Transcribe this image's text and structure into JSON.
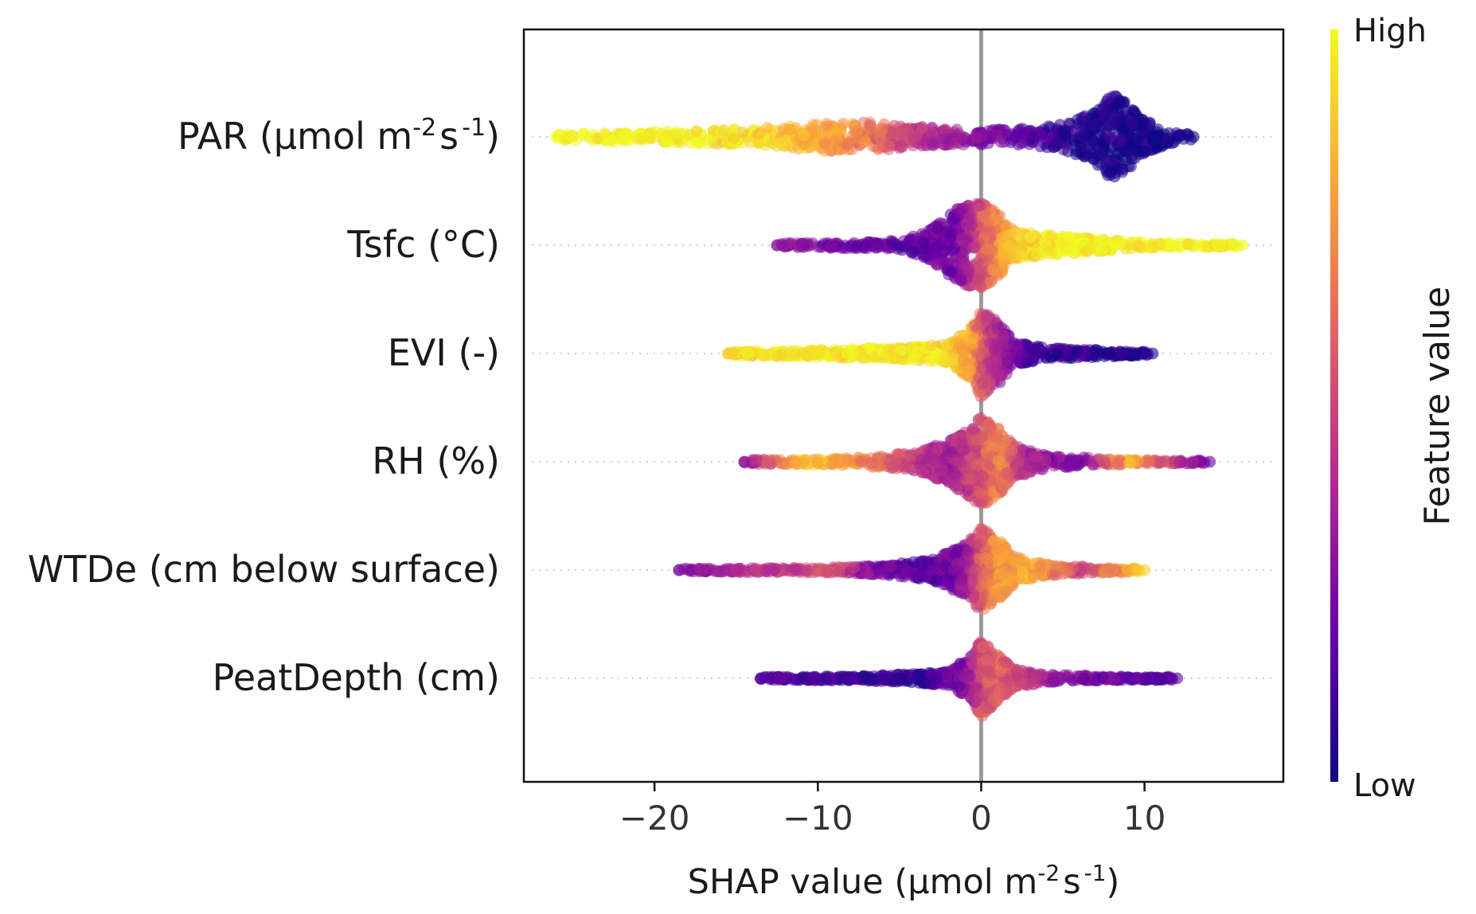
{
  "chart_data": {
    "type": "scatter",
    "subtype": "shap-beeswarm",
    "title": "",
    "xlabel": "SHAP value (µmol m⁻²s⁻¹)",
    "xlabel_parts": {
      "main": "SHAP value (μmol m",
      "sup1": "-2",
      "mid": "s",
      "sup2": "-1",
      "end": ")"
    },
    "xlim": [
      -28,
      18.5
    ],
    "xticks": [
      {
        "value": -20,
        "label": "−20"
      },
      {
        "value": -10,
        "label": "−10"
      },
      {
        "value": 0,
        "label": "0"
      },
      {
        "value": 10,
        "label": "10"
      }
    ],
    "zero_line": true,
    "grid": false,
    "colorbar": {
      "label": "Feature value",
      "high_label": "High",
      "low_label": "Low",
      "colormap": "plasma",
      "stops": [
        "#0d0887",
        "#6a00a8",
        "#b12a90",
        "#e16462",
        "#fca636",
        "#f0f921"
      ]
    },
    "features": [
      {
        "label": "PAR (µmol m⁻²s⁻¹)",
        "label_parts": {
          "main": "PAR (μmol m",
          "sup1": "-2",
          "mid": "s",
          "sup2": "-1",
          "end": ")"
        },
        "min": -26,
        "max": 13,
        "density": [
          [
            -26,
            0.06
          ],
          [
            -22,
            0.1
          ],
          [
            -18,
            0.14
          ],
          [
            -14,
            0.18
          ],
          [
            -10,
            0.3
          ],
          [
            -7,
            0.32
          ],
          [
            -4,
            0.22
          ],
          [
            -1,
            0.18
          ],
          [
            2,
            0.16
          ],
          [
            5,
            0.28
          ],
          [
            7,
            0.55
          ],
          [
            8,
            0.95
          ],
          [
            9,
            0.7
          ],
          [
            10,
            0.35
          ],
          [
            12,
            0.1
          ],
          [
            13,
            0.05
          ]
        ],
        "color": [
          [
            -26,
            1.0
          ],
          [
            -18,
            0.97
          ],
          [
            -12,
            0.88
          ],
          [
            -8,
            0.72
          ],
          [
            -4,
            0.45
          ],
          [
            -1,
            0.3
          ],
          [
            2,
            0.18
          ],
          [
            6,
            0.05
          ],
          [
            13,
            0.0
          ]
        ]
      },
      {
        "label": "Tsfc (°C)",
        "label_parts": {
          "main": "Tsfc (°C)"
        },
        "min": -12.5,
        "max": 16,
        "density": [
          [
            -12.5,
            0.04
          ],
          [
            -9,
            0.06
          ],
          [
            -5,
            0.1
          ],
          [
            -3,
            0.35
          ],
          [
            -1.5,
            0.8
          ],
          [
            0,
            0.95
          ],
          [
            1,
            0.7
          ],
          [
            2,
            0.3
          ],
          [
            4,
            0.22
          ],
          [
            7,
            0.14
          ],
          [
            10,
            0.06
          ],
          [
            16,
            0.03
          ]
        ],
        "color": [
          [
            -12.5,
            0.3
          ],
          [
            -8,
            0.22
          ],
          [
            -4,
            0.18
          ],
          [
            -1.5,
            0.25
          ],
          [
            0,
            0.55
          ],
          [
            1,
            0.72
          ],
          [
            2,
            0.88
          ],
          [
            5,
            0.98
          ],
          [
            16,
            1.0
          ]
        ]
      },
      {
        "label": "EVI (-)",
        "label_parts": {
          "main": "EVI (-)"
        },
        "min": -15.5,
        "max": 10.5,
        "density": [
          [
            -15.5,
            0.04
          ],
          [
            -12,
            0.06
          ],
          [
            -9,
            0.1
          ],
          [
            -5,
            0.12
          ],
          [
            -2,
            0.2
          ],
          [
            -0.5,
            0.6
          ],
          [
            0,
            0.95
          ],
          [
            1,
            0.7
          ],
          [
            2,
            0.25
          ],
          [
            4,
            0.12
          ],
          [
            7,
            0.08
          ],
          [
            10.5,
            0.03
          ]
        ],
        "color": [
          [
            -15.5,
            0.9
          ],
          [
            -12,
            0.95
          ],
          [
            -6,
            0.97
          ],
          [
            -2,
            0.92
          ],
          [
            -0.5,
            0.75
          ],
          [
            0,
            0.55
          ],
          [
            1,
            0.35
          ],
          [
            3,
            0.1
          ],
          [
            10.5,
            0.05
          ]
        ]
      },
      {
        "label": "RH (%)",
        "label_parts": {
          "main": "RH (%)"
        },
        "min": -14.5,
        "max": 14,
        "density": [
          [
            -14.5,
            0.04
          ],
          [
            -10,
            0.06
          ],
          [
            -7,
            0.1
          ],
          [
            -4,
            0.2
          ],
          [
            -2,
            0.45
          ],
          [
            0,
            0.95
          ],
          [
            1,
            0.75
          ],
          [
            2,
            0.35
          ],
          [
            4,
            0.14
          ],
          [
            7,
            0.08
          ],
          [
            10,
            0.04
          ],
          [
            14,
            0.03
          ]
        ],
        "color": [
          [
            -14.5,
            0.3
          ],
          [
            -11,
            0.85
          ],
          [
            -8,
            0.75
          ],
          [
            -4,
            0.45
          ],
          [
            -2,
            0.35
          ],
          [
            0,
            0.55
          ],
          [
            1,
            0.7
          ],
          [
            3,
            0.35
          ],
          [
            6,
            0.25
          ],
          [
            9,
            0.8
          ],
          [
            14,
            0.2
          ]
        ]
      },
      {
        "label": "WTDe (cm below surface)",
        "label_parts": {
          "main": "WTDe (cm below surface)"
        },
        "min": -18.5,
        "max": 10,
        "density": [
          [
            -18.5,
            0.03
          ],
          [
            -9,
            0.06
          ],
          [
            -6,
            0.1
          ],
          [
            -3,
            0.22
          ],
          [
            -1,
            0.55
          ],
          [
            0,
            0.9
          ],
          [
            1,
            0.7
          ],
          [
            2,
            0.3
          ],
          [
            4,
            0.12
          ],
          [
            7,
            0.06
          ],
          [
            10,
            0.03
          ]
        ],
        "color": [
          [
            -18.5,
            0.25
          ],
          [
            -9,
            0.55
          ],
          [
            -6,
            0.2
          ],
          [
            -3,
            0.15
          ],
          [
            -1,
            0.3
          ],
          [
            0,
            0.6
          ],
          [
            1,
            0.75
          ],
          [
            3,
            0.82
          ],
          [
            6,
            0.5
          ],
          [
            10,
            0.9
          ]
        ]
      },
      {
        "label": "PeatDepth (cm)",
        "label_parts": {
          "main": "PeatDepth (cm)"
        },
        "min": -13.5,
        "max": 12,
        "density": [
          [
            -13.5,
            0.03
          ],
          [
            -8,
            0.05
          ],
          [
            -5,
            0.08
          ],
          [
            -2,
            0.15
          ],
          [
            -0.5,
            0.5
          ],
          [
            0,
            0.85
          ],
          [
            0.7,
            0.6
          ],
          [
            2,
            0.2
          ],
          [
            4,
            0.08
          ],
          [
            8,
            0.04
          ],
          [
            12,
            0.03
          ]
        ],
        "color": [
          [
            -13.5,
            0.15
          ],
          [
            -8,
            0.1
          ],
          [
            -4,
            0.08
          ],
          [
            -1,
            0.25
          ],
          [
            0,
            0.55
          ],
          [
            1,
            0.6
          ],
          [
            3,
            0.4
          ],
          [
            6,
            0.25
          ],
          [
            12,
            0.15
          ]
        ]
      }
    ]
  }
}
